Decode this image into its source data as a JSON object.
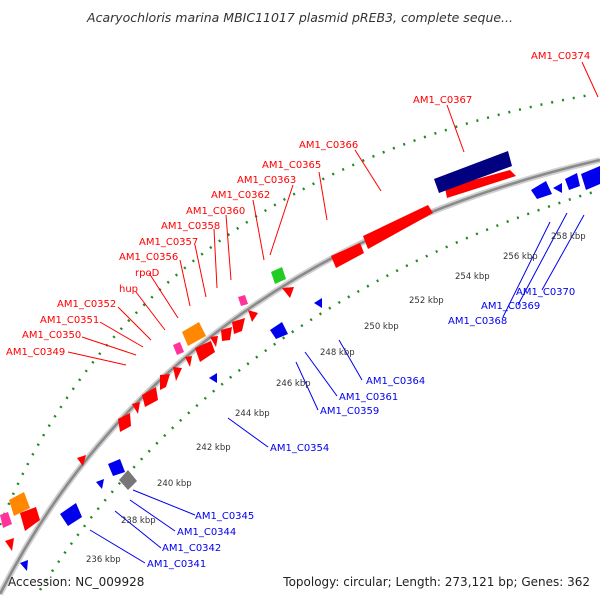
{
  "title": "Acaryochloris marina MBIC11017 plasmid pREB3, complete seque...",
  "footer": {
    "accession": "Accession: NC_009928",
    "summary": "Topology: circular; Length: 273,121 bp; Genes: 362"
  },
  "colors": {
    "forward": "#ff0000",
    "reverse": "#0000ee",
    "rna": "#ff3399",
    "orange": "#ff8800",
    "green": "#22cc22",
    "gray": "#777777",
    "navy": "#000080",
    "ticks": "#228822",
    "backbone": "#999999"
  },
  "scale_labels": [
    "236 kbp",
    "238 kbp",
    "240 kbp",
    "242 kbp",
    "244 kbp",
    "246 kbp",
    "248 kbp",
    "250 kbp",
    "252 kbp",
    "254 kbp",
    "256 kbp",
    "258 kbp"
  ],
  "forward_labels": [
    "AM1_C0374",
    "AM1_C0367",
    "AM1_C0366",
    "AM1_C0365",
    "AM1_C0363",
    "AM1_C0362",
    "AM1_C0360",
    "AM1_C0358",
    "AM1_C0357",
    "AM1_C0356",
    "rpoD",
    "hup",
    "AM1_C0352",
    "AM1_C0351",
    "AM1_C0350",
    "AM1_C0349"
  ],
  "reverse_labels": [
    "AM1_C0370",
    "AM1_C0369",
    "AM1_C0368",
    "AM1_C0364",
    "AM1_C0361",
    "AM1_C0359",
    "AM1_C0354",
    "AM1_C0345",
    "AM1_C0344",
    "AM1_C0342",
    "AM1_C0341"
  ]
}
